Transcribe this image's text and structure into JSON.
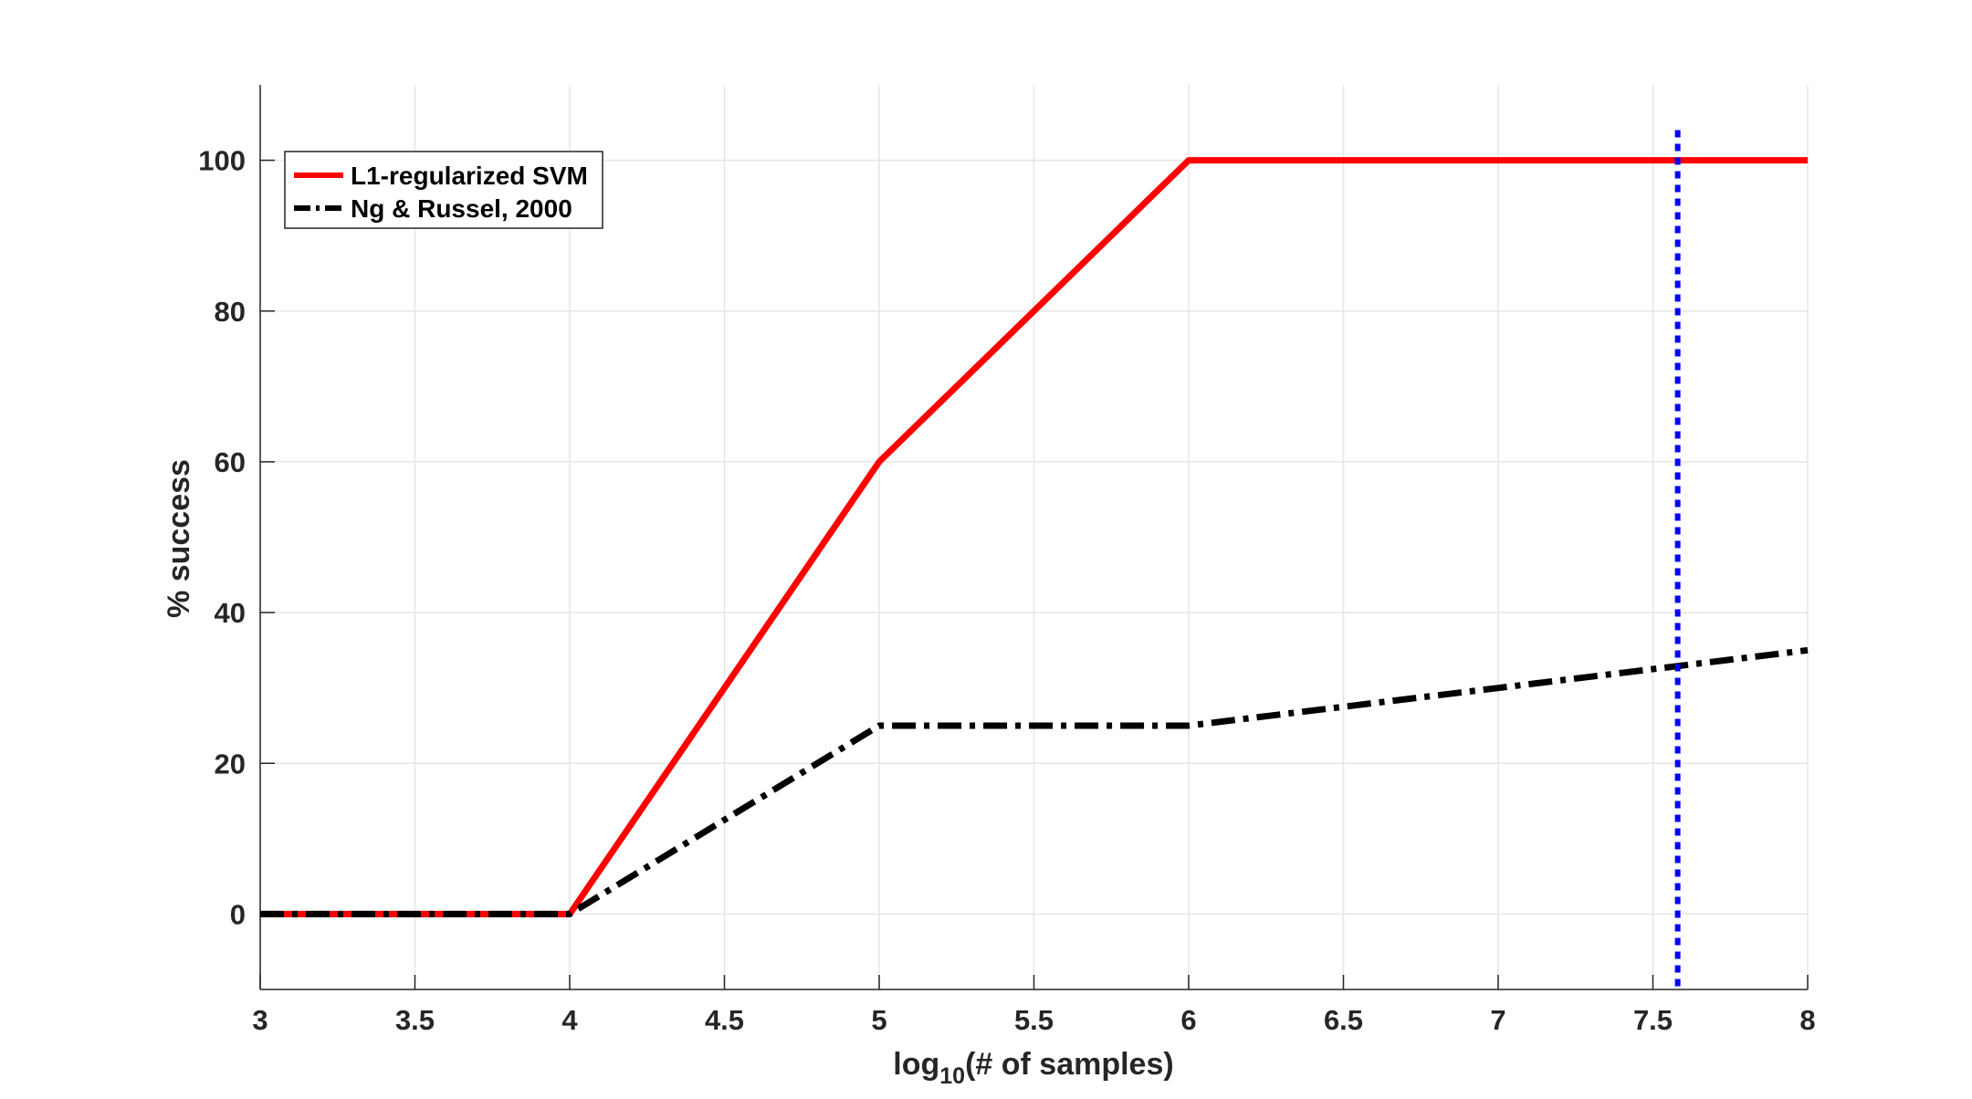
{
  "chart_data": {
    "type": "line",
    "title": "",
    "xlabel": "log",
    "xlabel_sub": "10",
    "xlabel_rest": "(# of samples)",
    "ylabel": "% success",
    "xlim": [
      3,
      8
    ],
    "ylim": [
      -10,
      110
    ],
    "xticks": [
      3,
      3.5,
      4,
      4.5,
      5,
      5.5,
      6,
      6.5,
      7,
      7.5,
      8
    ],
    "xtick_labels": [
      "3",
      "3.5",
      "4",
      "4.5",
      "5",
      "5.5",
      "6",
      "6.5",
      "7",
      "7.5",
      "8"
    ],
    "yticks": [
      0,
      20,
      40,
      60,
      80,
      100
    ],
    "ytick_labels": [
      "0",
      "20",
      "40",
      "60",
      "80",
      "100"
    ],
    "grid": true,
    "legend_position": "top-left",
    "series": [
      {
        "name": "L1-regularized SVM",
        "color": "#ff0000",
        "style": "solid",
        "x": [
          3,
          4,
          5,
          6,
          7,
          8
        ],
        "y": [
          0,
          0,
          60,
          100,
          100,
          100
        ]
      },
      {
        "name": "Ng & Russel, 2000",
        "color": "#000000",
        "style": "dashdot",
        "x": [
          3,
          4,
          5,
          6,
          7,
          8
        ],
        "y": [
          0,
          0,
          25,
          25,
          30,
          35
        ]
      }
    ],
    "vertical_line": {
      "x": 7.58,
      "color": "#0000ff",
      "style": "dotted",
      "y_top": 104
    }
  }
}
